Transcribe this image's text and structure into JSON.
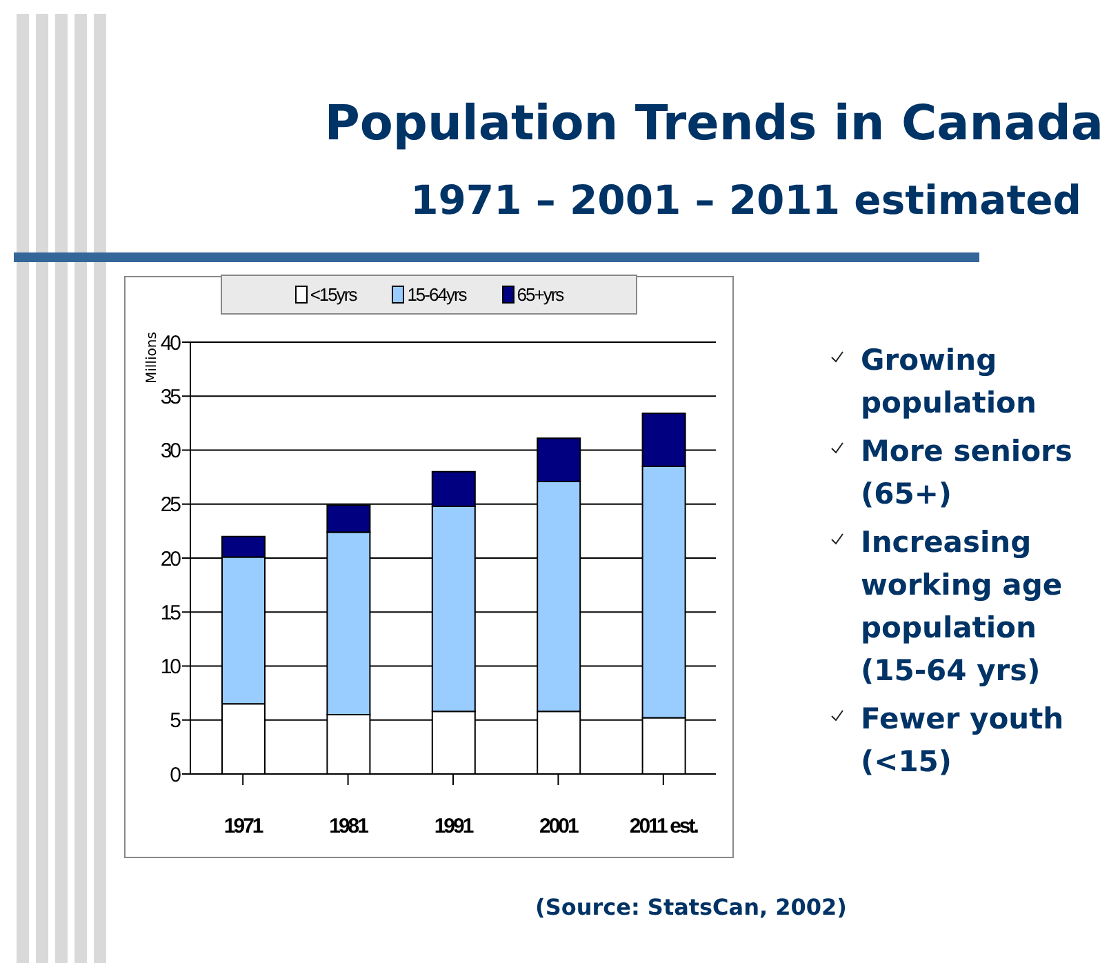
{
  "chart_data": {
    "type": "bar",
    "title": "Population Trends in Canada",
    "subtitle": "1971 – 2001 – 2011 estimated",
    "ylabel": "Millions",
    "categories": [
      "1971",
      "1981",
      "1991",
      "2001",
      "2011 est."
    ],
    "series": [
      {
        "name": "<15yrs",
        "color": "#ffffff",
        "values": [
          6.5,
          5.5,
          5.8,
          5.8,
          5.2
        ]
      },
      {
        "name": "15-64yrs",
        "color": "#99ccff",
        "values": [
          13.6,
          16.9,
          19.0,
          21.3,
          23.3
        ]
      },
      {
        "name": "65+yrs",
        "color": "#000080",
        "values": [
          1.9,
          2.5,
          3.2,
          4.0,
          4.9
        ]
      }
    ],
    "stacked": true,
    "ylim": [
      0,
      40
    ],
    "yticks": [
      0,
      5,
      10,
      15,
      20,
      25,
      30,
      35,
      40
    ],
    "grid": "y",
    "legend": "top",
    "annotations": [
      "Growing population",
      "More seniors (65+)",
      "Increasing working age population (15-64 yrs)",
      "Fewer youth (<15)",
      "(Source: StatsCan, 2002)"
    ]
  }
}
